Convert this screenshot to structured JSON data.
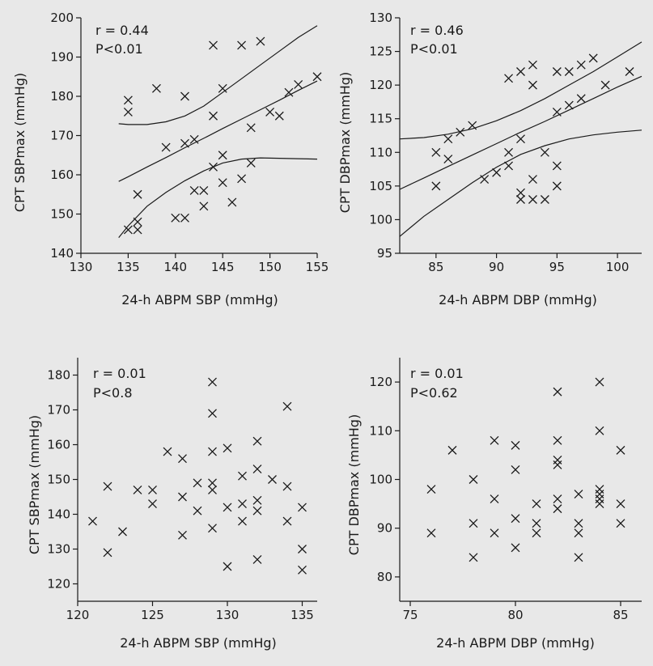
{
  "colors": {
    "background": "#e8e8e8",
    "ink": "#1a1a1a"
  },
  "chart_data": [
    {
      "type": "scatter",
      "xlabel": "24-h ABPM SBP (mmHg)",
      "ylabel": "CPT SBPmax (mmHg)",
      "annotations": [
        "r = 0.44",
        "P<0.01"
      ],
      "xlim": [
        130,
        155
      ],
      "ylim": [
        140,
        200
      ],
      "xticks": [
        130,
        135,
        140,
        145,
        150,
        155
      ],
      "yticks": [
        140,
        150,
        160,
        170,
        180,
        190,
        200
      ],
      "grid": false,
      "marker": "x",
      "points": [
        [
          135,
          179
        ],
        [
          135,
          176
        ],
        [
          135,
          146
        ],
        [
          136,
          155
        ],
        [
          136,
          148
        ],
        [
          136,
          146
        ],
        [
          138,
          182
        ],
        [
          139,
          167
        ],
        [
          140,
          149
        ],
        [
          141,
          180
        ],
        [
          141,
          168
        ],
        [
          141,
          149
        ],
        [
          142,
          169
        ],
        [
          142,
          156
        ],
        [
          143,
          156
        ],
        [
          143,
          152
        ],
        [
          144,
          193
        ],
        [
          144,
          175
        ],
        [
          144,
          162
        ],
        [
          145,
          182
        ],
        [
          145,
          165
        ],
        [
          145,
          158
        ],
        [
          146,
          153
        ],
        [
          147,
          193
        ],
        [
          147,
          159
        ],
        [
          148,
          172
        ],
        [
          148,
          163
        ],
        [
          149,
          194
        ],
        [
          150,
          176
        ],
        [
          151,
          175
        ],
        [
          152,
          181
        ],
        [
          153,
          183
        ],
        [
          155,
          185
        ]
      ],
      "fit_lines": [
        {
          "x": [
            134,
            135,
            137,
            139,
            141,
            143,
            145,
            147,
            149,
            151,
            153,
            155
          ],
          "y": [
            158.3,
            159.5,
            162.0,
            164.4,
            166.9,
            169.3,
            171.8,
            174.2,
            176.6,
            179.0,
            181.5,
            183.9
          ]
        },
        {
          "x": [
            134,
            135,
            137,
            139,
            141,
            143,
            145,
            147,
            149,
            151,
            153,
            155
          ],
          "y": [
            173.0,
            172.8,
            172.8,
            173.5,
            175.0,
            177.5,
            181.0,
            184.5,
            188.0,
            191.5,
            195.0,
            198.0
          ]
        },
        {
          "x": [
            134,
            135,
            137,
            139,
            141,
            143,
            145,
            147,
            149,
            151,
            153,
            155
          ],
          "y": [
            144.0,
            147.0,
            152.0,
            155.5,
            158.5,
            161.0,
            163.0,
            164.0,
            164.3,
            164.2,
            164.1,
            164.0
          ]
        }
      ]
    },
    {
      "type": "scatter",
      "xlabel": "24-h ABPM DBP (mmHg)",
      "ylabel": "CPT DBPmax (mmHg)",
      "annotations": [
        "r = 0.46",
        "P<0.01"
      ],
      "xlim": [
        82,
        102
      ],
      "ylim": [
        95,
        130
      ],
      "xticks": [
        85,
        90,
        95,
        100
      ],
      "yticks": [
        95,
        100,
        105,
        110,
        115,
        120,
        125,
        130
      ],
      "grid": false,
      "marker": "x",
      "points": [
        [
          85,
          110
        ],
        [
          85,
          105
        ],
        [
          86,
          112
        ],
        [
          86,
          109
        ],
        [
          87,
          113
        ],
        [
          88,
          114
        ],
        [
          89,
          106
        ],
        [
          90,
          107
        ],
        [
          91,
          121
        ],
        [
          91,
          110
        ],
        [
          91,
          108
        ],
        [
          92,
          122
        ],
        [
          92,
          112
        ],
        [
          92,
          104
        ],
        [
          92,
          103
        ],
        [
          93,
          123
        ],
        [
          93,
          120
        ],
        [
          93,
          106
        ],
        [
          93,
          103
        ],
        [
          94,
          110
        ],
        [
          94,
          103
        ],
        [
          95,
          122
        ],
        [
          95,
          116
        ],
        [
          95,
          108
        ],
        [
          95,
          105
        ],
        [
          96,
          122
        ],
        [
          96,
          117
        ],
        [
          97,
          123
        ],
        [
          97,
          118
        ],
        [
          98,
          124
        ],
        [
          99,
          120
        ],
        [
          101,
          122
        ]
      ],
      "fit_lines": [
        {
          "x": [
            82,
            84,
            86,
            88,
            90,
            92,
            94,
            96,
            98,
            100,
            102
          ],
          "y": [
            104.5,
            106.2,
            107.9,
            109.6,
            111.3,
            113.0,
            114.6,
            116.3,
            118.0,
            119.7,
            121.3
          ]
        },
        {
          "x": [
            82,
            84,
            86,
            88,
            90,
            92,
            94,
            96,
            98,
            100,
            102
          ],
          "y": [
            112.0,
            112.2,
            112.7,
            113.5,
            114.7,
            116.2,
            118.0,
            120.0,
            122.0,
            124.2,
            126.4
          ]
        },
        {
          "x": [
            82,
            84,
            86,
            88,
            90,
            92,
            94,
            96,
            98,
            100,
            102
          ],
          "y": [
            97.5,
            100.5,
            103.0,
            105.5,
            107.8,
            109.7,
            111.0,
            112.0,
            112.6,
            113.0,
            113.3
          ]
        }
      ]
    },
    {
      "type": "scatter",
      "xlabel": "24-h ABPM SBP (mmHg)",
      "ylabel": "CPT SBPmax (mmHg)",
      "annotations": [
        "r = 0.01",
        "P<0.8"
      ],
      "xlim": [
        120,
        136
      ],
      "ylim": [
        115,
        185
      ],
      "xticks": [
        120,
        125,
        130,
        135
      ],
      "yticks": [
        120,
        130,
        140,
        150,
        160,
        170,
        180
      ],
      "grid": false,
      "marker": "x",
      "points": [
        [
          121,
          138
        ],
        [
          122,
          148
        ],
        [
          122,
          129
        ],
        [
          123,
          135
        ],
        [
          124,
          147
        ],
        [
          125,
          147
        ],
        [
          125,
          143
        ],
        [
          126,
          158
        ],
        [
          127,
          156
        ],
        [
          127,
          145
        ],
        [
          127,
          134
        ],
        [
          128,
          149
        ],
        [
          128,
          141
        ],
        [
          129,
          178
        ],
        [
          129,
          169
        ],
        [
          129,
          158
        ],
        [
          129,
          149
        ],
        [
          129,
          147
        ],
        [
          129,
          136
        ],
        [
          130,
          159
        ],
        [
          130,
          142
        ],
        [
          130,
          125
        ],
        [
          131,
          151
        ],
        [
          131,
          143
        ],
        [
          131,
          138
        ],
        [
          132,
          161
        ],
        [
          132,
          153
        ],
        [
          132,
          144
        ],
        [
          132,
          141
        ],
        [
          132,
          127
        ],
        [
          133,
          150
        ],
        [
          134,
          171
        ],
        [
          134,
          148
        ],
        [
          134,
          138
        ],
        [
          135,
          142
        ],
        [
          135,
          130
        ],
        [
          135,
          124
        ]
      ]
    },
    {
      "type": "scatter",
      "xlabel": "24-h ABPM DBP (mmHg)",
      "ylabel": "CPT DBPmax (mmHg)",
      "annotations": [
        "r = 0.01",
        "P<0.62"
      ],
      "xlim": [
        74.5,
        86
      ],
      "ylim": [
        75,
        125
      ],
      "xticks": [
        75,
        80,
        85
      ],
      "yticks": [
        80,
        90,
        100,
        110,
        120
      ],
      "grid": false,
      "marker": "x",
      "points": [
        [
          76,
          98
        ],
        [
          76,
          89
        ],
        [
          77,
          106
        ],
        [
          78,
          100
        ],
        [
          78,
          91
        ],
        [
          78,
          84
        ],
        [
          79,
          108
        ],
        [
          79,
          96
        ],
        [
          79,
          89
        ],
        [
          80,
          107
        ],
        [
          80,
          102
        ],
        [
          80,
          92
        ],
        [
          80,
          86
        ],
        [
          81,
          95
        ],
        [
          81,
          91
        ],
        [
          81,
          89
        ],
        [
          82,
          118
        ],
        [
          82,
          108
        ],
        [
          82,
          104
        ],
        [
          82,
          103
        ],
        [
          82,
          96
        ],
        [
          82,
          94
        ],
        [
          83,
          97
        ],
        [
          83,
          91
        ],
        [
          83,
          89
        ],
        [
          83,
          84
        ],
        [
          84,
          120
        ],
        [
          84,
          110
        ],
        [
          84,
          98
        ],
        [
          84,
          97
        ],
        [
          84,
          96
        ],
        [
          84,
          95
        ],
        [
          85,
          106
        ],
        [
          85,
          95
        ],
        [
          85,
          91
        ]
      ]
    }
  ]
}
